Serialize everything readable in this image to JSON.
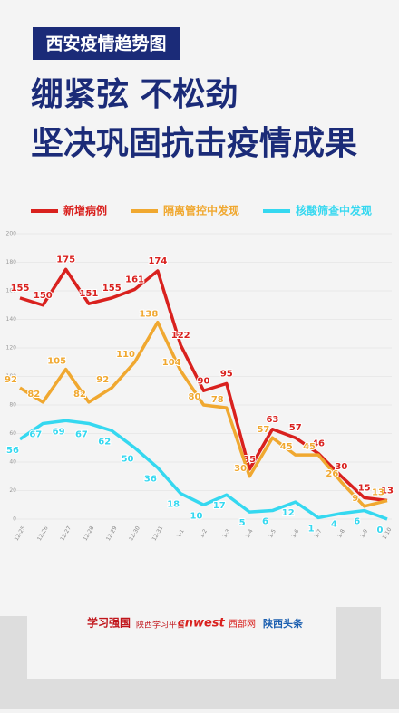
{
  "header": {
    "tag": "西安疫情趋势图",
    "title_lines": [
      "绷紧弦 不松劲",
      "坚决巩固抗击疫情成果"
    ]
  },
  "chart_data": {
    "type": "line",
    "categories": [
      "12-25",
      "12-26",
      "12-27",
      "12-28",
      "12-29",
      "12-30",
      "12-31",
      "1-1",
      "1-2",
      "1-3",
      "1-4",
      "1-5",
      "1-6",
      "1-7",
      "1-8",
      "1-9",
      "1-10"
    ],
    "series": [
      {
        "name": "新增病例",
        "color": "#d9211e",
        "values": [
          155,
          150,
          175,
          151,
          155,
          161,
          174,
          122,
          90,
          95,
          35,
          63,
          57,
          46,
          30,
          15,
          13
        ]
      },
      {
        "name": "隔离管控中发现",
        "color": "#f0a830",
        "values": [
          92,
          82,
          105,
          82,
          92,
          110,
          138,
          104,
          80,
          78,
          30,
          57,
          45,
          45,
          26,
          9,
          13
        ]
      },
      {
        "name": "核酸筛查中发现",
        "color": "#35d8f0",
        "values": [
          56,
          67,
          69,
          67,
          62,
          50,
          36,
          18,
          10,
          17,
          5,
          6,
          12,
          1,
          4,
          6,
          0
        ]
      }
    ],
    "ylim": [
      0,
      200
    ],
    "yticks": [
      0,
      20,
      40,
      60,
      80,
      100,
      120,
      140,
      160,
      180,
      200
    ],
    "grid": true
  },
  "footer": {
    "logos": [
      "学习强国",
      "陕西学习平台",
      "cnwest",
      "西部网",
      "陕西头条"
    ]
  }
}
